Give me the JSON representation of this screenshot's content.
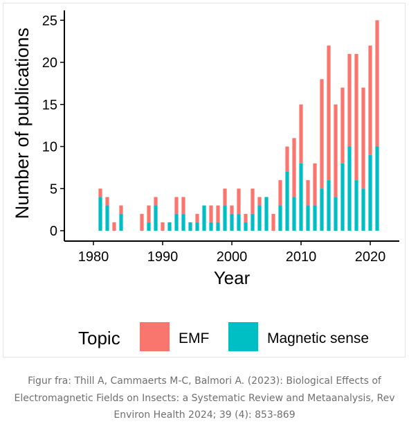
{
  "chart_data": {
    "type": "bar",
    "stacked": true,
    "title": "",
    "xlabel": "Year",
    "ylabel": "Number of publications",
    "xlim": [
      1978,
      2024
    ],
    "ylim": [
      0,
      26
    ],
    "x_ticks": [
      1980,
      1990,
      2000,
      2010,
      2020
    ],
    "y_ticks": [
      0,
      5,
      10,
      15,
      20,
      25
    ],
    "grid": false,
    "legend": {
      "title": "Topic",
      "position": "bottom"
    },
    "x": [
      1981,
      1982,
      1983,
      1984,
      1987,
      1988,
      1989,
      1990,
      1991,
      1992,
      1993,
      1994,
      1995,
      1996,
      1997,
      1998,
      1999,
      2000,
      2001,
      2002,
      2003,
      2004,
      2005,
      2006,
      2007,
      2008,
      2009,
      2010,
      2011,
      2012,
      2013,
      2014,
      2015,
      2016,
      2017,
      2018,
      2019,
      2020,
      2021
    ],
    "series": [
      {
        "name": "Magnetic sense",
        "color": "#00BFC4",
        "values": [
          4,
          3,
          0,
          2,
          0,
          1,
          3,
          0,
          1,
          2,
          2,
          1,
          1,
          3,
          1,
          1,
          3,
          2,
          2,
          1,
          2,
          3,
          4,
          0,
          3,
          7,
          4,
          8,
          3,
          3,
          5,
          6,
          4,
          8,
          10,
          6,
          5,
          9,
          10
        ]
      },
      {
        "name": "EMF",
        "color": "#F8766D",
        "values": [
          1,
          1,
          1,
          1,
          2,
          2,
          1,
          1,
          0,
          2,
          2,
          0,
          1,
          0,
          2,
          2,
          2,
          1,
          3,
          1,
          3,
          1,
          0,
          2,
          3,
          3,
          7,
          7,
          3,
          5,
          13,
          16,
          11,
          9,
          11,
          15,
          12,
          13,
          15
        ]
      }
    ]
  },
  "caption": {
    "lines": [
      "Figur fra: Thill A, Cammaerts M-C, Balmori A. (2023): Biological Effects of",
      "Electromagnetic Fields on Insects: a Systematic Review and Metaanalysis, Rev",
      "Environ Health 2024; 39 (4): 853-869"
    ]
  }
}
